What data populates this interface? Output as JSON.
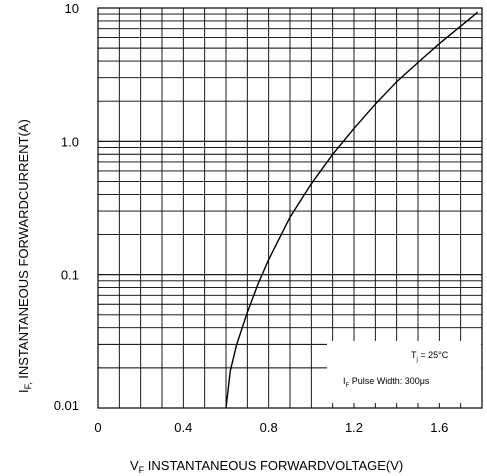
{
  "chart_data": {
    "type": "line",
    "xlabel_sub": "F",
    "xlabel": "INSTANTANEOUS FORWARDVOLTAGE(V)",
    "ylabel_sub": "F,",
    "ylabel": "INSTANTANEOUS FORWARDCURRENT(A)",
    "x_scale": "linear",
    "y_scale": "log",
    "xlim": [
      0,
      1.8
    ],
    "ylim": [
      0.01,
      10
    ],
    "x_ticks": [
      "0",
      "0.4",
      "0.8",
      "1.2",
      "1.6"
    ],
    "y_ticks": [
      "10",
      "1.0",
      "0.1",
      "0.01"
    ],
    "grid": true,
    "series": [
      {
        "x": [
          0.6,
          0.62,
          0.65,
          0.7,
          0.75,
          0.8,
          0.9,
          1.0,
          1.1,
          1.2,
          1.3,
          1.4,
          1.5,
          1.6,
          1.7,
          1.78
        ],
        "y": [
          0.01,
          0.019,
          0.03,
          0.052,
          0.085,
          0.13,
          0.27,
          0.48,
          0.8,
          1.25,
          1.9,
          2.8,
          3.9,
          5.4,
          7.3,
          9.3
        ]
      }
    ],
    "annotations": {
      "tj_main": "T",
      "tj_sub": "j",
      "tj_rest": " = 25°C",
      "pulse_main": "I",
      "pulse_sub": "F",
      "pulse_rest": " Pulse  Width: 300μs"
    },
    "colors": {
      "grid": "#000000",
      "line": "#000000"
    }
  }
}
